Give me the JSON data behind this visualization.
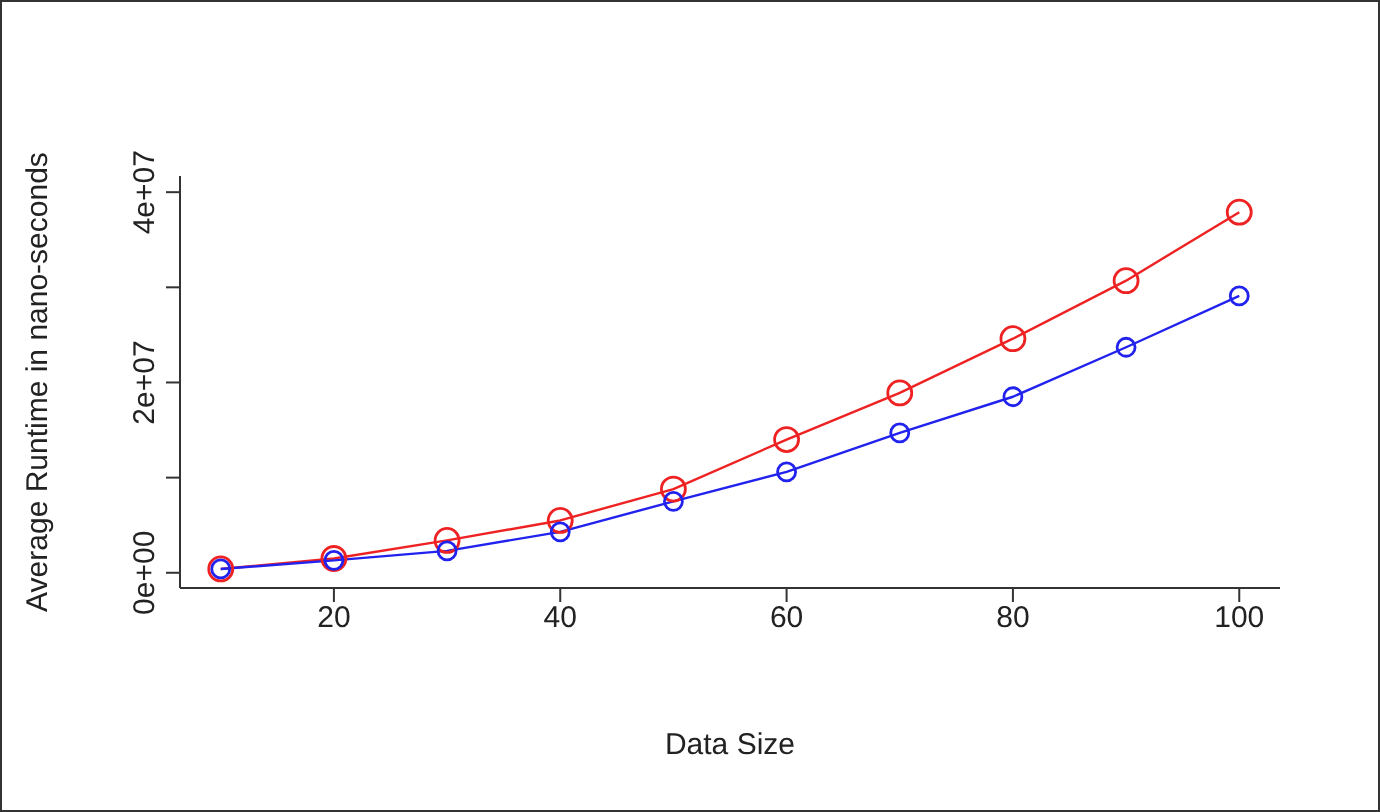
{
  "chart_data": {
    "type": "line",
    "xlabel": "Data Size",
    "ylabel": "Average Runtime in nano-seconds",
    "x": [
      10,
      20,
      30,
      40,
      50,
      60,
      70,
      80,
      90,
      100
    ],
    "series": [
      {
        "color": "#ee2222",
        "values": [
          400000,
          1500000,
          3400000,
          5500000,
          8800000,
          14000000,
          18900000,
          24600000,
          30700000,
          37900000
        ]
      },
      {
        "color": "#2222ee",
        "values": [
          400000,
          1300000,
          2300000,
          4300000,
          7500000,
          10600000,
          14700000,
          18500000,
          23700000,
          29100000
        ]
      }
    ],
    "xlim": [
      6.4,
      103.6
    ],
    "xticks": [
      20,
      40,
      60,
      80,
      100
    ],
    "ylim": [
      -1600000,
      41700000
    ],
    "yticks": [
      {
        "value": 0,
        "label": "0e+00"
      },
      {
        "value": 10000000,
        "label": null
      },
      {
        "value": 20000000,
        "label": "2e+07"
      },
      {
        "value": 30000000,
        "label": null
      },
      {
        "value": 40000000,
        "label": "4e+07"
      }
    ],
    "grid": false,
    "legend": false,
    "marker": "circle",
    "line_style": "solid"
  }
}
